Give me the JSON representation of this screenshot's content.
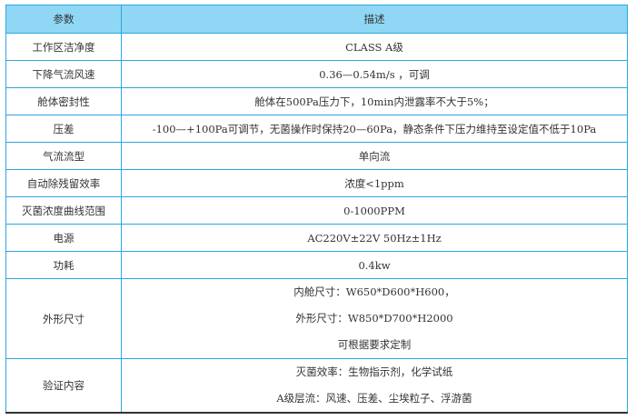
{
  "table": {
    "headers": [
      "参数",
      "描述"
    ],
    "rows": [
      {
        "param": "工作区洁净度",
        "desc": [
          "CLASS A级"
        ]
      },
      {
        "param": "下降气流风速",
        "desc": [
          "0.36—0.54m/s ，可调"
        ]
      },
      {
        "param": "舱体密封性",
        "desc": [
          "舱体在500Pa压力下，10min内泄露率不大于5%；"
        ]
      },
      {
        "param": "压差",
        "desc": [
          "-100—+100Pa可调节，无菌操作时保持20—60Pa，静态条件下压力维持至设定值不低于10Pa"
        ]
      },
      {
        "param": "气流流型",
        "desc": [
          "单向流"
        ]
      },
      {
        "param": "自动除残留效率",
        "desc": [
          "浓度<1ppm"
        ]
      },
      {
        "param": "灭菌浓度曲线范围",
        "desc": [
          "0-1000PPM"
        ]
      },
      {
        "param": "电源",
        "desc": [
          "AC220V±22V 50Hz±1Hz"
        ]
      },
      {
        "param": "功耗",
        "desc": [
          "0.4kw"
        ]
      },
      {
        "param": "外形尺寸",
        "desc": [
          "内舱尺寸：W650*D600*H600，",
          "外形尺寸：W850*D700*H2000",
          "可根据要求定制"
        ]
      },
      {
        "param": "验证内容",
        "desc": [
          "灭菌效率：生物指示剂，化学试纸",
          "A级层流：风速、压差、尘埃粒子、浮游菌"
        ]
      }
    ]
  }
}
